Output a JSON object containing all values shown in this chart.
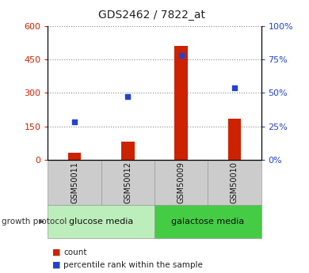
{
  "title": "GDS2462 / 7822_at",
  "samples": [
    "GSM50011",
    "GSM50012",
    "GSM50009",
    "GSM50010"
  ],
  "counts": [
    30,
    80,
    510,
    185
  ],
  "percentiles": [
    28,
    47,
    78,
    54
  ],
  "ylim_left": [
    0,
    600
  ],
  "ylim_right": [
    0,
    100
  ],
  "yticks_left": [
    0,
    150,
    300,
    450,
    600
  ],
  "yticks_right": [
    0,
    25,
    50,
    75,
    100
  ],
  "ytick_labels_left": [
    "0",
    "150",
    "300",
    "450",
    "600"
  ],
  "ytick_labels_right": [
    "0%",
    "25%",
    "50%",
    "75%",
    "100%"
  ],
  "bar_color": "#cc2200",
  "dot_color": "#2244cc",
  "groups": [
    {
      "label": "glucose media",
      "indices": [
        0,
        1
      ],
      "color": "#bbeebb"
    },
    {
      "label": "galactose media",
      "indices": [
        2,
        3
      ],
      "color": "#44cc44"
    }
  ],
  "group_row_label": "growth protocol",
  "legend_count_label": "count",
  "legend_percentile_label": "percentile rank within the sample",
  "plot_bg": "#ffffff",
  "title_color": "#222222",
  "left_axis_color": "#cc2200",
  "right_axis_color": "#2244cc",
  "grid_color": "#888888",
  "sample_box_color": "#cccccc",
  "border_color": "#999999"
}
